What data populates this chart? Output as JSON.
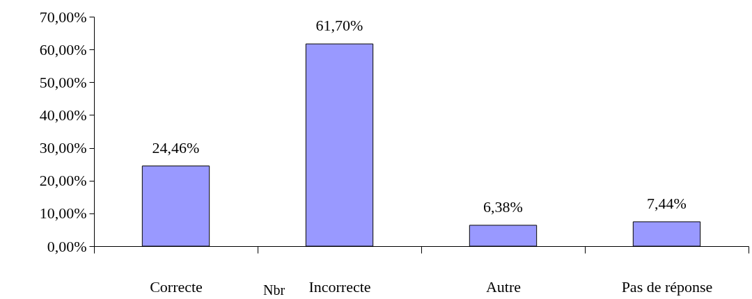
{
  "chart_data": {
    "type": "bar",
    "xlabel": "Nbr",
    "categories": [
      "Correcte",
      "Incorrecte",
      "Autre",
      "Pas de réponse"
    ],
    "values": [
      24.46,
      61.7,
      6.38,
      7.44
    ],
    "value_labels": [
      "24,46%",
      "61,70%",
      "6,38%",
      "7,44%"
    ],
    "color": "#9999ff",
    "ylim": [
      0,
      70
    ],
    "yticks": [
      {
        "value": 0,
        "label": "0,00%"
      },
      {
        "value": 10,
        "label": "10,00%"
      },
      {
        "value": 20,
        "label": "20,00%"
      },
      {
        "value": 30,
        "label": "30,00%"
      },
      {
        "value": 40,
        "label": "40,00%"
      },
      {
        "value": 50,
        "label": "50,00%"
      },
      {
        "value": 60,
        "label": "60,00%"
      },
      {
        "value": 70,
        "label": "70,00%"
      }
    ],
    "grid": false
  }
}
